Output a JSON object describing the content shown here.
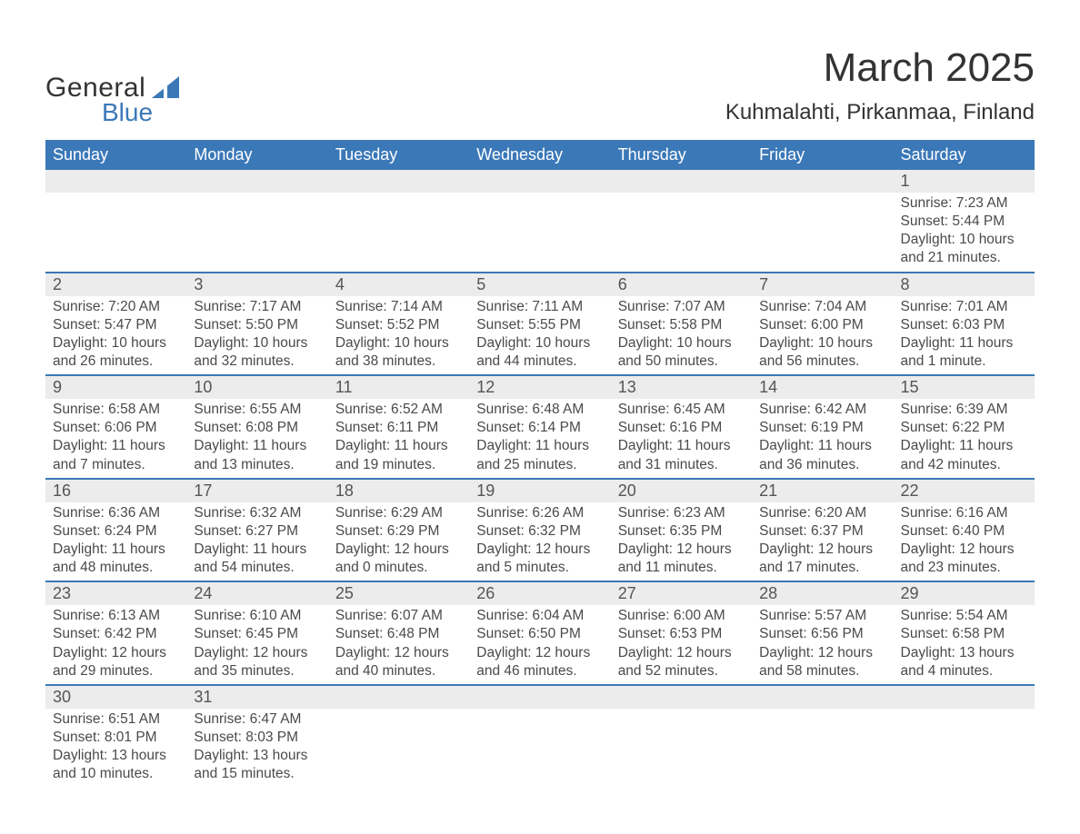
{
  "brand": {
    "word1": "General",
    "word2": "Blue"
  },
  "title": "March 2025",
  "location": "Kuhmalahti, Pirkanmaa, Finland",
  "colors": {
    "header_bg": "#3b78b8",
    "header_text": "#ffffff",
    "daynum_bg": "#ececec",
    "row_divider": "#3b78b8",
    "body_text": "#4a4a4a",
    "page_bg": "#ffffff"
  },
  "typography": {
    "title_fontsize": 44,
    "location_fontsize": 24,
    "weekday_fontsize": 18,
    "daynum_fontsize": 18,
    "detail_fontsize": 15.5,
    "font_family": "Arial"
  },
  "weekdays": [
    "Sunday",
    "Monday",
    "Tuesday",
    "Wednesday",
    "Thursday",
    "Friday",
    "Saturday"
  ],
  "structure": {
    "type": "calendar-table",
    "columns": 7,
    "rows": 6,
    "first_day_column_index": 6
  },
  "weeks": [
    [
      null,
      null,
      null,
      null,
      null,
      null,
      {
        "day": "1",
        "sunrise": "Sunrise: 7:23 AM",
        "sunset": "Sunset: 5:44 PM",
        "daylight1": "Daylight: 10 hours",
        "daylight2": "and 21 minutes."
      }
    ],
    [
      {
        "day": "2",
        "sunrise": "Sunrise: 7:20 AM",
        "sunset": "Sunset: 5:47 PM",
        "daylight1": "Daylight: 10 hours",
        "daylight2": "and 26 minutes."
      },
      {
        "day": "3",
        "sunrise": "Sunrise: 7:17 AM",
        "sunset": "Sunset: 5:50 PM",
        "daylight1": "Daylight: 10 hours",
        "daylight2": "and 32 minutes."
      },
      {
        "day": "4",
        "sunrise": "Sunrise: 7:14 AM",
        "sunset": "Sunset: 5:52 PM",
        "daylight1": "Daylight: 10 hours",
        "daylight2": "and 38 minutes."
      },
      {
        "day": "5",
        "sunrise": "Sunrise: 7:11 AM",
        "sunset": "Sunset: 5:55 PM",
        "daylight1": "Daylight: 10 hours",
        "daylight2": "and 44 minutes."
      },
      {
        "day": "6",
        "sunrise": "Sunrise: 7:07 AM",
        "sunset": "Sunset: 5:58 PM",
        "daylight1": "Daylight: 10 hours",
        "daylight2": "and 50 minutes."
      },
      {
        "day": "7",
        "sunrise": "Sunrise: 7:04 AM",
        "sunset": "Sunset: 6:00 PM",
        "daylight1": "Daylight: 10 hours",
        "daylight2": "and 56 minutes."
      },
      {
        "day": "8",
        "sunrise": "Sunrise: 7:01 AM",
        "sunset": "Sunset: 6:03 PM",
        "daylight1": "Daylight: 11 hours",
        "daylight2": "and 1 minute."
      }
    ],
    [
      {
        "day": "9",
        "sunrise": "Sunrise: 6:58 AM",
        "sunset": "Sunset: 6:06 PM",
        "daylight1": "Daylight: 11 hours",
        "daylight2": "and 7 minutes."
      },
      {
        "day": "10",
        "sunrise": "Sunrise: 6:55 AM",
        "sunset": "Sunset: 6:08 PM",
        "daylight1": "Daylight: 11 hours",
        "daylight2": "and 13 minutes."
      },
      {
        "day": "11",
        "sunrise": "Sunrise: 6:52 AM",
        "sunset": "Sunset: 6:11 PM",
        "daylight1": "Daylight: 11 hours",
        "daylight2": "and 19 minutes."
      },
      {
        "day": "12",
        "sunrise": "Sunrise: 6:48 AM",
        "sunset": "Sunset: 6:14 PM",
        "daylight1": "Daylight: 11 hours",
        "daylight2": "and 25 minutes."
      },
      {
        "day": "13",
        "sunrise": "Sunrise: 6:45 AM",
        "sunset": "Sunset: 6:16 PM",
        "daylight1": "Daylight: 11 hours",
        "daylight2": "and 31 minutes."
      },
      {
        "day": "14",
        "sunrise": "Sunrise: 6:42 AM",
        "sunset": "Sunset: 6:19 PM",
        "daylight1": "Daylight: 11 hours",
        "daylight2": "and 36 minutes."
      },
      {
        "day": "15",
        "sunrise": "Sunrise: 6:39 AM",
        "sunset": "Sunset: 6:22 PM",
        "daylight1": "Daylight: 11 hours",
        "daylight2": "and 42 minutes."
      }
    ],
    [
      {
        "day": "16",
        "sunrise": "Sunrise: 6:36 AM",
        "sunset": "Sunset: 6:24 PM",
        "daylight1": "Daylight: 11 hours",
        "daylight2": "and 48 minutes."
      },
      {
        "day": "17",
        "sunrise": "Sunrise: 6:32 AM",
        "sunset": "Sunset: 6:27 PM",
        "daylight1": "Daylight: 11 hours",
        "daylight2": "and 54 minutes."
      },
      {
        "day": "18",
        "sunrise": "Sunrise: 6:29 AM",
        "sunset": "Sunset: 6:29 PM",
        "daylight1": "Daylight: 12 hours",
        "daylight2": "and 0 minutes."
      },
      {
        "day": "19",
        "sunrise": "Sunrise: 6:26 AM",
        "sunset": "Sunset: 6:32 PM",
        "daylight1": "Daylight: 12 hours",
        "daylight2": "and 5 minutes."
      },
      {
        "day": "20",
        "sunrise": "Sunrise: 6:23 AM",
        "sunset": "Sunset: 6:35 PM",
        "daylight1": "Daylight: 12 hours",
        "daylight2": "and 11 minutes."
      },
      {
        "day": "21",
        "sunrise": "Sunrise: 6:20 AM",
        "sunset": "Sunset: 6:37 PM",
        "daylight1": "Daylight: 12 hours",
        "daylight2": "and 17 minutes."
      },
      {
        "day": "22",
        "sunrise": "Sunrise: 6:16 AM",
        "sunset": "Sunset: 6:40 PM",
        "daylight1": "Daylight: 12 hours",
        "daylight2": "and 23 minutes."
      }
    ],
    [
      {
        "day": "23",
        "sunrise": "Sunrise: 6:13 AM",
        "sunset": "Sunset: 6:42 PM",
        "daylight1": "Daylight: 12 hours",
        "daylight2": "and 29 minutes."
      },
      {
        "day": "24",
        "sunrise": "Sunrise: 6:10 AM",
        "sunset": "Sunset: 6:45 PM",
        "daylight1": "Daylight: 12 hours",
        "daylight2": "and 35 minutes."
      },
      {
        "day": "25",
        "sunrise": "Sunrise: 6:07 AM",
        "sunset": "Sunset: 6:48 PM",
        "daylight1": "Daylight: 12 hours",
        "daylight2": "and 40 minutes."
      },
      {
        "day": "26",
        "sunrise": "Sunrise: 6:04 AM",
        "sunset": "Sunset: 6:50 PM",
        "daylight1": "Daylight: 12 hours",
        "daylight2": "and 46 minutes."
      },
      {
        "day": "27",
        "sunrise": "Sunrise: 6:00 AM",
        "sunset": "Sunset: 6:53 PM",
        "daylight1": "Daylight: 12 hours",
        "daylight2": "and 52 minutes."
      },
      {
        "day": "28",
        "sunrise": "Sunrise: 5:57 AM",
        "sunset": "Sunset: 6:56 PM",
        "daylight1": "Daylight: 12 hours",
        "daylight2": "and 58 minutes."
      },
      {
        "day": "29",
        "sunrise": "Sunrise: 5:54 AM",
        "sunset": "Sunset: 6:58 PM",
        "daylight1": "Daylight: 13 hours",
        "daylight2": "and 4 minutes."
      }
    ],
    [
      {
        "day": "30",
        "sunrise": "Sunrise: 6:51 AM",
        "sunset": "Sunset: 8:01 PM",
        "daylight1": "Daylight: 13 hours",
        "daylight2": "and 10 minutes."
      },
      {
        "day": "31",
        "sunrise": "Sunrise: 6:47 AM",
        "sunset": "Sunset: 8:03 PM",
        "daylight1": "Daylight: 13 hours",
        "daylight2": "and 15 minutes."
      },
      null,
      null,
      null,
      null,
      null
    ]
  ]
}
